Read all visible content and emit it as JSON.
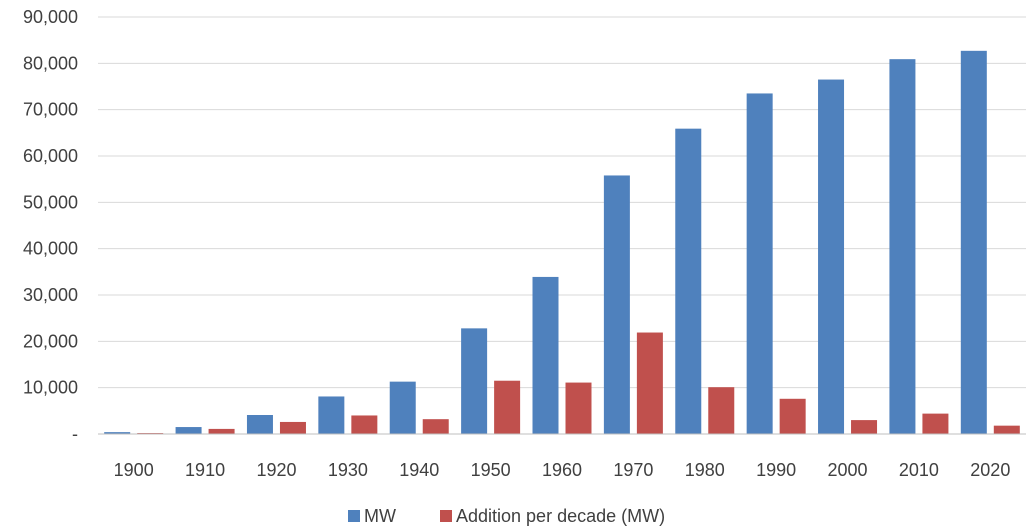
{
  "chart_data": {
    "type": "bar",
    "title": "",
    "xlabel": "",
    "ylabel": "",
    "categories": [
      "1900",
      "1910",
      "1920",
      "1930",
      "1940",
      "1950",
      "1960",
      "1970",
      "1980",
      "1990",
      "2000",
      "2010",
      "2020"
    ],
    "series": [
      {
        "name": "MW",
        "color": "#4f81bd",
        "values": [
          400,
          1500,
          4100,
          8100,
          11300,
          22800,
          33900,
          55800,
          65900,
          73500,
          76500,
          80900,
          82700
        ]
      },
      {
        "name": "Addition per decade (MW)",
        "color": "#c0504d",
        "values": [
          200,
          1100,
          2600,
          4000,
          3200,
          11500,
          11100,
          21900,
          10100,
          7600,
          3000,
          4400,
          1800
        ]
      }
    ],
    "ylim": [
      0,
      90000
    ],
    "yticks": [
      {
        "value": 0,
        "label": "-"
      },
      {
        "value": 10000,
        "label": "10,000"
      },
      {
        "value": 20000,
        "label": "20,000"
      },
      {
        "value": 30000,
        "label": "30,000"
      },
      {
        "value": 40000,
        "label": "40,000"
      },
      {
        "value": 50000,
        "label": "50,000"
      },
      {
        "value": 60000,
        "label": "60,000"
      },
      {
        "value": 70000,
        "label": "70,000"
      },
      {
        "value": 80000,
        "label": "80,000"
      },
      {
        "value": 90000,
        "label": "90,000"
      }
    ],
    "grid": true,
    "legend": "bottom"
  }
}
